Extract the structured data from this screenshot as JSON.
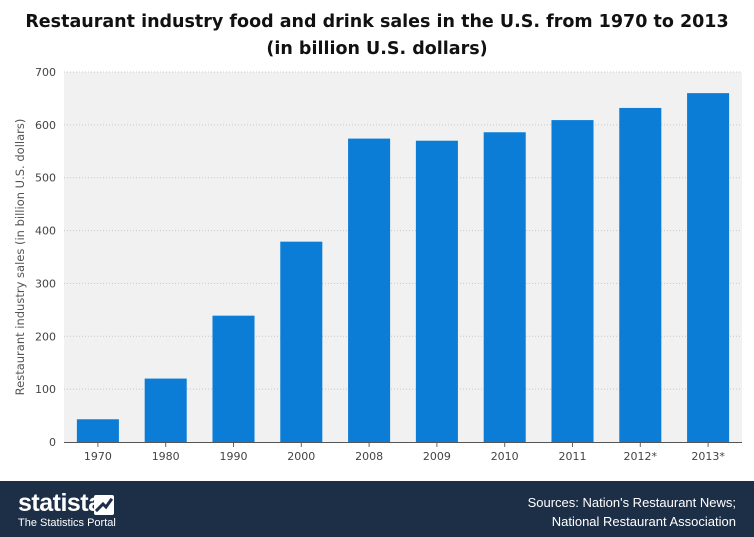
{
  "chart_data": {
    "type": "bar",
    "title_line1": "Restaurant industry food and drink sales in the U.S. from 1970 to 2013",
    "title_line2": "(in billion U.S. dollars)",
    "xlabel": "",
    "ylabel": "Restaurant industry sales (in billion U.S. dollars)",
    "categories": [
      "1970",
      "1980",
      "1990",
      "2000",
      "2008",
      "2009",
      "2010",
      "2011",
      "2012*",
      "2013*"
    ],
    "values": [
      43,
      120,
      239,
      379,
      574,
      570,
      586,
      609,
      632,
      660
    ],
    "ylim": [
      0,
      700
    ],
    "yticks": [
      0,
      100,
      200,
      300,
      400,
      500,
      600,
      700
    ],
    "bar_color": "#0b7dd6",
    "grid": true
  },
  "footer": {
    "brand": "statista",
    "tagline": "The Statistics Portal",
    "source_line1": "Sources: Nation's Restaurant News;",
    "source_line2": "National Restaurant Association",
    "background": "#1d2f46"
  }
}
